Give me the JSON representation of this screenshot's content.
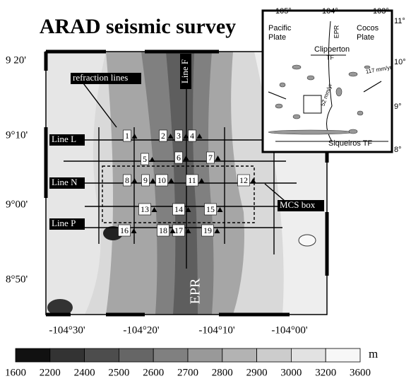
{
  "title": "ARAD seismic survey",
  "map": {
    "lat_labels": [
      "9 20'",
      "9°10'",
      "9°00'",
      "8°50'"
    ],
    "lon_labels": [
      "-104°30'",
      "-104°20'",
      "-104°10'",
      "-104°00'"
    ],
    "line_labels": [
      "Line L",
      "Line N",
      "Line P"
    ],
    "line_f": "Line F",
    "refraction": "refraction lines",
    "mcs": "MCS box",
    "epr": "EPR",
    "stations": [
      "1",
      "2",
      "3",
      "4",
      "5",
      "6",
      "7",
      "8",
      "9",
      "10",
      "11",
      "12",
      "13",
      "14",
      "15",
      "16",
      "17",
      "18",
      "19"
    ]
  },
  "inset": {
    "lon_labels": [
      "105°",
      "104°",
      "103°"
    ],
    "lat_labels": [
      "11°",
      "10°",
      "9°",
      "8°"
    ],
    "pacific": [
      "Pacific",
      "Plate"
    ],
    "cocos": [
      "Cocos",
      "Plate"
    ],
    "epr": "EPR",
    "clipperton": [
      "Clipperton",
      "TF"
    ],
    "siqueiros": "Siqueiros TF",
    "rate_pac": "52 mm/yr",
    "rate_cocos": "117 mm/yr"
  },
  "colorbar": {
    "ticks": [
      1600,
      2200,
      2400,
      2500,
      2600,
      2700,
      2800,
      2900,
      3000,
      3200,
      3600
    ],
    "colors": [
      "#111111",
      "#333333",
      "#4d4d4d",
      "#666666",
      "#808080",
      "#999999",
      "#b3b3b3",
      "#cccccc",
      "#e2e2e2",
      "#f7f7f7"
    ],
    "unit": "m"
  }
}
